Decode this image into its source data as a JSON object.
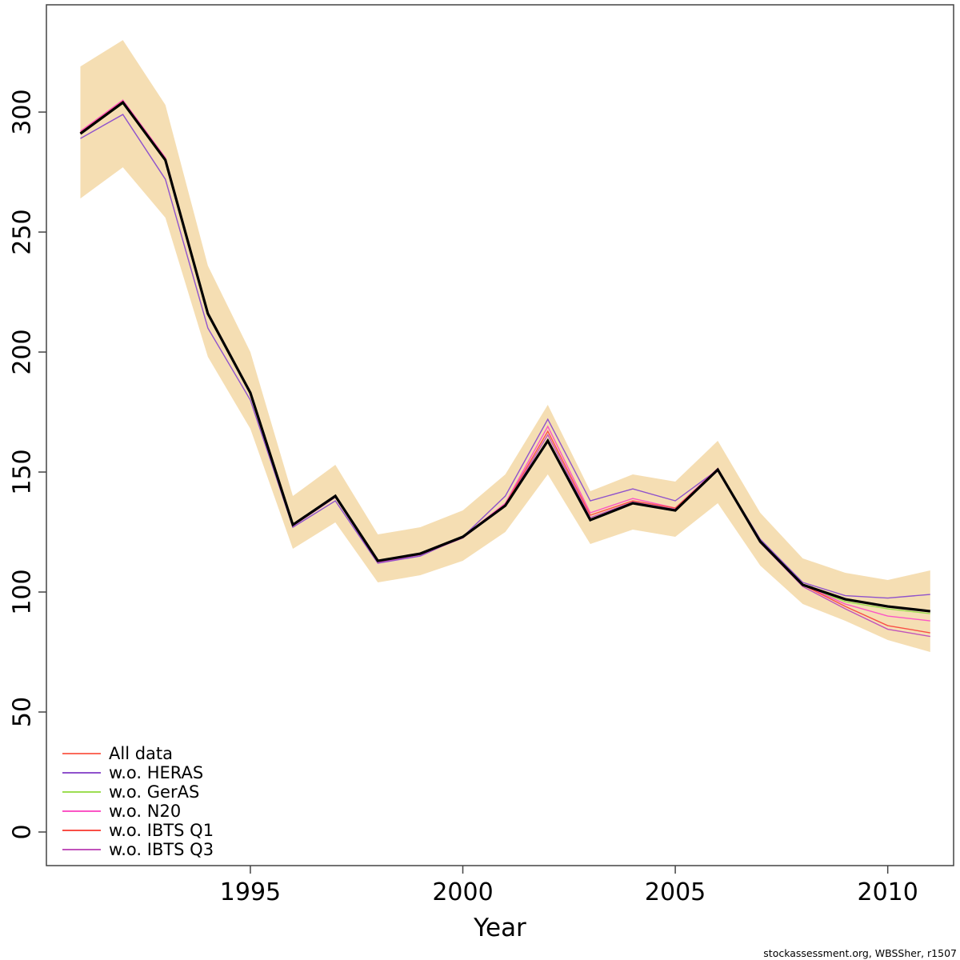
{
  "figure": {
    "footer": "stockassessment.org, WBSSher, r1507"
  },
  "chart_data": {
    "type": "line",
    "title": "",
    "xlabel": "Year",
    "ylabel": "",
    "grid": false,
    "legend_position": "bottom-left",
    "x": [
      1991,
      1992,
      1993,
      1994,
      1995,
      1996,
      1997,
      1998,
      1999,
      2000,
      2001,
      2002,
      2003,
      2004,
      2005,
      2006,
      2007,
      2008,
      2009,
      2010,
      2011
    ],
    "x_ticks": [
      1995,
      2000,
      2005,
      2010
    ],
    "y_ticks": [
      0,
      50,
      100,
      150,
      200,
      250,
      300
    ],
    "xlim": [
      1990.2,
      2011.55
    ],
    "ylim": [
      -14,
      344.7
    ],
    "band": {
      "name": "confidence band (All data)",
      "color": "#F5DEB3",
      "lower": [
        264,
        277,
        256,
        198,
        168,
        118,
        129,
        104,
        107,
        113,
        125,
        149,
        120,
        126,
        123,
        137,
        111,
        95,
        88,
        80,
        75
      ],
      "upper": [
        319,
        330,
        303,
        236,
        200,
        140,
        153,
        124,
        127,
        134,
        149,
        178,
        142,
        149,
        146,
        163,
        133,
        114,
        108,
        105,
        109
      ]
    },
    "base_line": {
      "name": "All data (base fit)",
      "color": "#000000",
      "values": [
        291,
        304,
        280,
        216,
        183,
        128,
        140,
        113,
        116,
        123,
        136,
        163,
        130,
        137,
        134,
        151,
        121,
        103,
        97,
        94,
        92
      ]
    },
    "series": [
      {
        "name": "All data",
        "color": "#FB6B5B",
        "values": [
          291,
          304,
          280,
          216,
          183,
          128,
          140,
          113,
          116,
          123,
          136,
          163,
          130,
          137,
          134,
          151,
          121,
          103,
          97,
          94,
          92
        ]
      },
      {
        "name": "w.o. HERAS",
        "color": "#8F52CC",
        "values": [
          289,
          299,
          272,
          210,
          180,
          127,
          138,
          112,
          115,
          123,
          140,
          172,
          138,
          143,
          138,
          151,
          122,
          104,
          98.5,
          97.5,
          99
        ]
      },
      {
        "name": "w.o. GerAS",
        "color": "#9CDE52",
        "values": [
          291,
          303.5,
          279.5,
          215.5,
          182.5,
          127.8,
          139.7,
          112.8,
          115.8,
          122.8,
          135.8,
          163.5,
          130.3,
          137,
          134,
          150.8,
          120.8,
          102.7,
          96,
          93,
          91
        ]
      },
      {
        "name": "w.o. N20",
        "color": "#FB55C5",
        "values": [
          292,
          305,
          281,
          216.5,
          183.5,
          128,
          140,
          113,
          116,
          123,
          137,
          169,
          133,
          139,
          135,
          151.5,
          121,
          103,
          95,
          90,
          88
        ]
      },
      {
        "name": "w.o. IBTS Q1",
        "color": "#F94F46",
        "values": [
          291.5,
          304.5,
          280.5,
          216,
          183,
          128,
          140,
          112.5,
          115.8,
          122.8,
          136.5,
          167,
          132,
          138,
          135,
          151,
          121,
          103,
          94,
          86,
          83
        ]
      },
      {
        "name": "w.o. IBTS Q3",
        "color": "#C153BB",
        "values": [
          291,
          304,
          280,
          215.8,
          182.8,
          127.5,
          139.5,
          112.3,
          115.5,
          122.5,
          136,
          165.5,
          131,
          137.5,
          134.5,
          150.5,
          120.5,
          102.3,
          93,
          84.5,
          81.5
        ]
      }
    ]
  }
}
